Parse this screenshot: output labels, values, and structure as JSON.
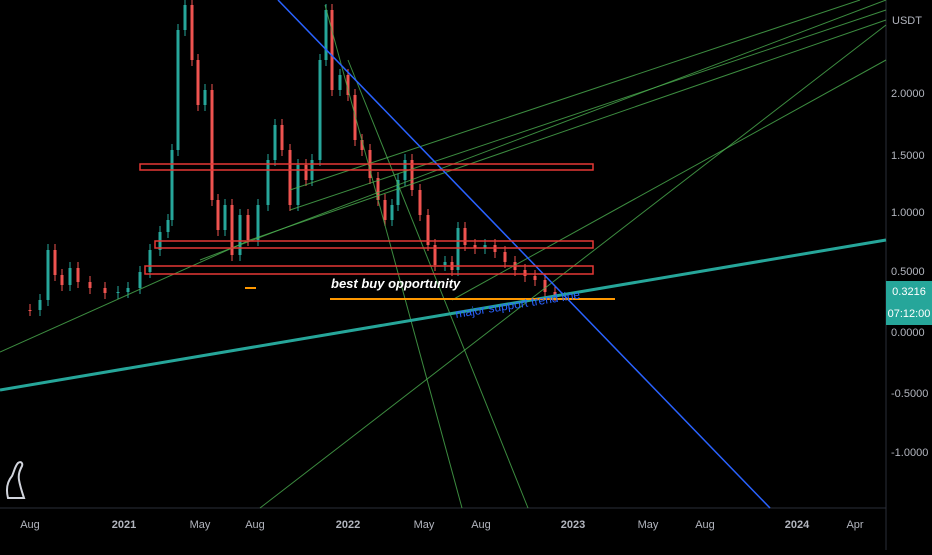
{
  "chart_data": {
    "type": "line",
    "symbol_currency": "USDT",
    "y_axis": {
      "scale": "log",
      "tick_labels": [
        "2.0000",
        "1.5000",
        "1.0000",
        "0.5000",
        "0.0000",
        "-0.5000",
        "-1.0000"
      ]
    },
    "x_axis": {
      "tick_labels": [
        "Aug",
        "2021",
        "May",
        "Aug",
        "2022",
        "May",
        "Aug",
        "2023",
        "May",
        "Aug",
        "2024",
        "Apr"
      ]
    },
    "last_price": "0.3216",
    "countdown": "07:12:00",
    "annotations": [
      "best buy opportunity",
      "major support trend line"
    ],
    "colors": {
      "up_candle": "#26a69a",
      "down_candle": "#ef5350",
      "resistance_box": "#e53935",
      "downtrend_line": "#2962ff",
      "support_trend_line": "#26a69a",
      "fan_lines": "#4caf50",
      "buy_level_line": "#ff9800",
      "price_badge": "#26a69a"
    },
    "grid": false,
    "legend": "none"
  }
}
